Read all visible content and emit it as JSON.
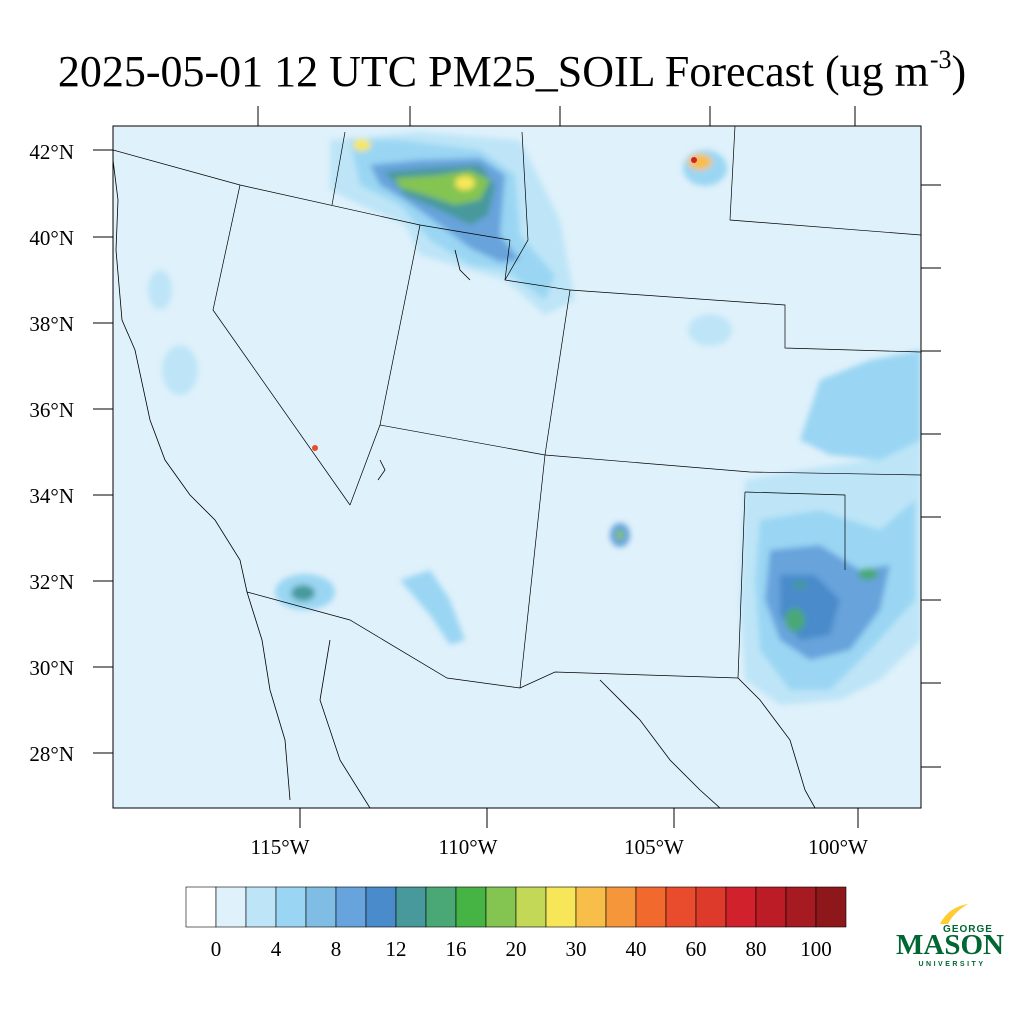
{
  "title": {
    "main": "2025-05-01 12 UTC PM25_SOIL Forecast (ug m",
    "sup": "-3",
    "close": ")"
  },
  "map": {
    "lat_labels": [
      "42°N",
      "40°N",
      "38°N",
      "36°N",
      "34°N",
      "32°N",
      "30°N",
      "28°N"
    ],
    "lon_labels": [
      "115°W",
      "110°W",
      "105°W",
      "100°W"
    ],
    "background_color": "#dff1fb"
  },
  "colorbar": {
    "colors": [
      "#ffffff",
      "#dff1fb",
      "#bde5f7",
      "#9ad6f3",
      "#80bde4",
      "#67a3dc",
      "#4a8bcb",
      "#47999c",
      "#4aa876",
      "#45b445",
      "#84c451",
      "#c2d856",
      "#f7e758",
      "#f8be4a",
      "#f6963a",
      "#f2692d",
      "#e84c2c",
      "#dd3a2b",
      "#d1212d",
      "#bb1c26",
      "#a61a22",
      "#8e171c"
    ],
    "labels": [
      "0",
      "4",
      "8",
      "12",
      "16",
      "20",
      "30",
      "40",
      "60",
      "80",
      "100"
    ]
  },
  "logo": {
    "top": "GEORGE",
    "main": "MASON",
    "bottom": "UNIVERSITY",
    "green": "#006633",
    "gold": "#ffcc33"
  }
}
